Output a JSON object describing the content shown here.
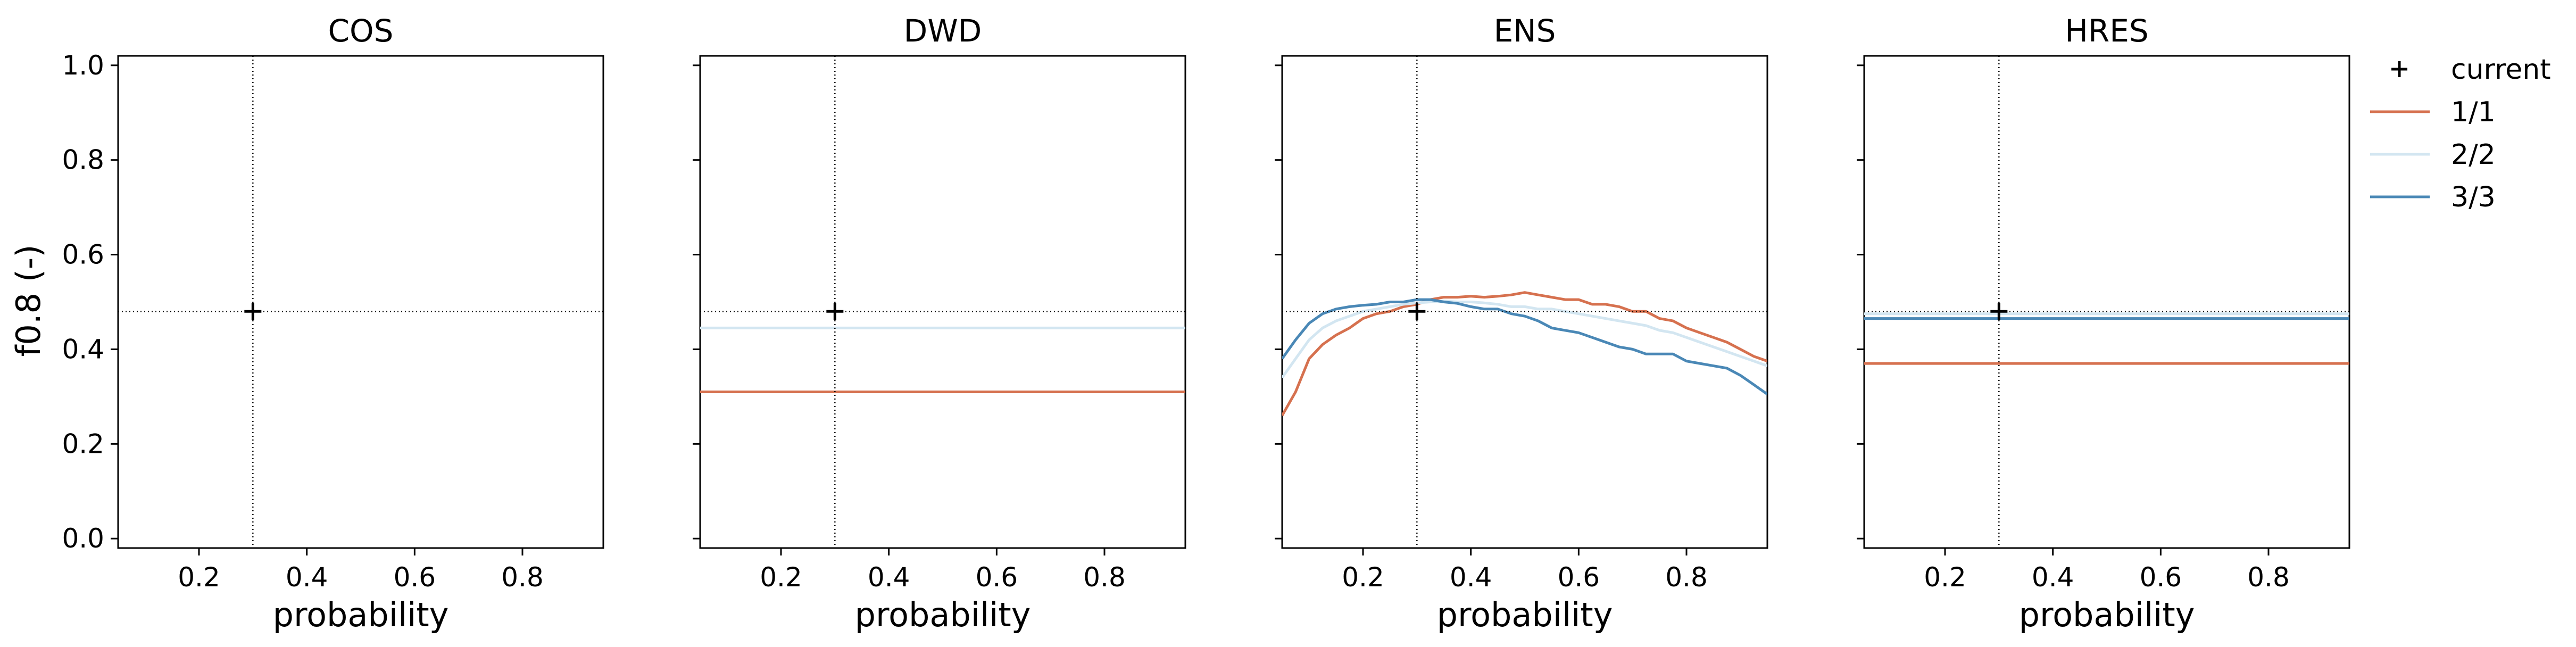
{
  "chart_data": {
    "type": "line",
    "ylabel": "f0.8 (-)",
    "xlabel": "probability",
    "xlim": [
      0.05,
      0.95
    ],
    "ylim": [
      -0.02,
      1.02
    ],
    "xticks": [
      "0.2",
      "0.4",
      "0.6",
      "0.8"
    ],
    "xtick_values": [
      0.2,
      0.4,
      0.6,
      0.8
    ],
    "yticks": [
      "0.0",
      "0.2",
      "0.4",
      "0.6",
      "0.8",
      "1.0"
    ],
    "ytick_values": [
      0.0,
      0.2,
      0.4,
      0.6,
      0.8,
      1.0
    ],
    "current": {
      "label": "current",
      "x": 0.3,
      "y": 0.48
    },
    "legend": {
      "placement": "outside-right",
      "entries": [
        "current",
        "1/1",
        "2/2",
        "3/3"
      ]
    },
    "series_colors": {
      "1/1": "#d6714f",
      "2/2": "#d3e6f1",
      "3/3": "#4a88b6"
    },
    "grid": false,
    "panels": [
      {
        "title": "COS",
        "series": []
      },
      {
        "title": "DWD",
        "series": [
          {
            "name": "1/1",
            "x": [
              0.05,
              0.95
            ],
            "y": [
              0.31,
              0.31
            ]
          },
          {
            "name": "2/2",
            "x": [
              0.05,
              0.95
            ],
            "y": [
              0.445,
              0.445
            ]
          }
        ]
      },
      {
        "title": "ENS",
        "series": [
          {
            "name": "1/1",
            "x": [
              0.05,
              0.075,
              0.1,
              0.125,
              0.15,
              0.175,
              0.2,
              0.225,
              0.25,
              0.275,
              0.3,
              0.325,
              0.35,
              0.375,
              0.4,
              0.425,
              0.45,
              0.475,
              0.5,
              0.525,
              0.55,
              0.575,
              0.6,
              0.625,
              0.65,
              0.675,
              0.7,
              0.725,
              0.75,
              0.775,
              0.8,
              0.825,
              0.85,
              0.875,
              0.9,
              0.925,
              0.95
            ],
            "y": [
              0.26,
              0.31,
              0.38,
              0.41,
              0.43,
              0.445,
              0.465,
              0.475,
              0.48,
              0.49,
              0.495,
              0.505,
              0.51,
              0.51,
              0.512,
              0.51,
              0.512,
              0.515,
              0.52,
              0.515,
              0.51,
              0.505,
              0.505,
              0.495,
              0.495,
              0.49,
              0.48,
              0.48,
              0.465,
              0.46,
              0.445,
              0.435,
              0.425,
              0.415,
              0.4,
              0.385,
              0.375
            ]
          },
          {
            "name": "2/2",
            "x": [
              0.05,
              0.075,
              0.1,
              0.125,
              0.15,
              0.175,
              0.2,
              0.225,
              0.25,
              0.275,
              0.3,
              0.325,
              0.35,
              0.375,
              0.4,
              0.425,
              0.45,
              0.475,
              0.5,
              0.525,
              0.55,
              0.575,
              0.6,
              0.625,
              0.65,
              0.675,
              0.7,
              0.725,
              0.75,
              0.775,
              0.8,
              0.825,
              0.85,
              0.875,
              0.9,
              0.925,
              0.95
            ],
            "y": [
              0.34,
              0.38,
              0.42,
              0.445,
              0.46,
              0.47,
              0.48,
              0.485,
              0.49,
              0.495,
              0.498,
              0.5,
              0.502,
              0.5,
              0.5,
              0.498,
              0.495,
              0.49,
              0.49,
              0.485,
              0.485,
              0.48,
              0.475,
              0.47,
              0.465,
              0.46,
              0.455,
              0.45,
              0.44,
              0.435,
              0.425,
              0.415,
              0.405,
              0.395,
              0.385,
              0.375,
              0.365
            ]
          },
          {
            "name": "3/3",
            "x": [
              0.05,
              0.075,
              0.1,
              0.125,
              0.15,
              0.175,
              0.2,
              0.225,
              0.25,
              0.275,
              0.3,
              0.325,
              0.35,
              0.375,
              0.4,
              0.425,
              0.45,
              0.475,
              0.5,
              0.525,
              0.55,
              0.575,
              0.6,
              0.625,
              0.65,
              0.675,
              0.7,
              0.725,
              0.75,
              0.775,
              0.8,
              0.825,
              0.85,
              0.875,
              0.9,
              0.925,
              0.95
            ],
            "y": [
              0.38,
              0.42,
              0.455,
              0.475,
              0.485,
              0.49,
              0.493,
              0.495,
              0.5,
              0.5,
              0.505,
              0.505,
              0.5,
              0.497,
              0.49,
              0.485,
              0.485,
              0.475,
              0.47,
              0.46,
              0.445,
              0.44,
              0.435,
              0.425,
              0.415,
              0.405,
              0.4,
              0.39,
              0.39,
              0.39,
              0.375,
              0.37,
              0.365,
              0.36,
              0.345,
              0.325,
              0.305
            ]
          }
        ]
      },
      {
        "title": "HRES",
        "series": [
          {
            "name": "1/1",
            "x": [
              0.05,
              0.95
            ],
            "y": [
              0.37,
              0.37
            ]
          },
          {
            "name": "2/2",
            "x": [
              0.05,
              0.95
            ],
            "y": [
              0.475,
              0.475
            ]
          },
          {
            "name": "3/3",
            "x": [
              0.05,
              0.95
            ],
            "y": [
              0.465,
              0.465
            ]
          }
        ]
      }
    ]
  }
}
